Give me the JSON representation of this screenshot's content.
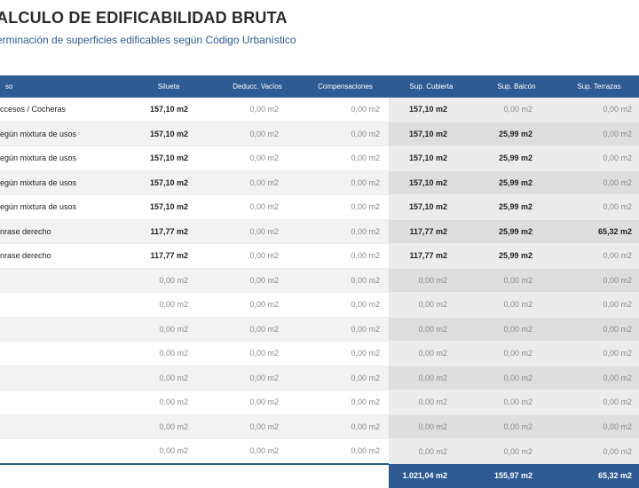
{
  "header": {
    "title": "ALCULO DE EDIFICABILIDAD BRUTA",
    "subtitle": "erminación de superficies edificables según Código Urbanístico"
  },
  "table": {
    "columns": [
      "so",
      "Silueta",
      "Deducc. Vacíos",
      "Compensaciones",
      "Sup. Cubierta",
      "Sup. Balcón",
      "Sup. Terrazas"
    ],
    "rows": [
      [
        "ccesos / Cocheras",
        "157,10 m2",
        "0,00 m2",
        "0,00 m2",
        "157,10 m2",
        "0,00 m2",
        "0,00 m2"
      ],
      [
        "egún mixtura de usos",
        "157,10 m2",
        "0,00 m2",
        "0,00 m2",
        "157,10 m2",
        "25,99 m2",
        "0,00 m2"
      ],
      [
        "egún mixtura de usos",
        "157,10 m2",
        "0,00 m2",
        "0,00 m2",
        "157,10 m2",
        "25,99 m2",
        "0,00 m2"
      ],
      [
        "egún mixtura de usos",
        "157,10 m2",
        "0,00 m2",
        "0,00 m2",
        "157,10 m2",
        "25,99 m2",
        "0,00 m2"
      ],
      [
        "egún mixtura de usos",
        "157,10 m2",
        "0,00 m2",
        "0,00 m2",
        "157,10 m2",
        "25,99 m2",
        "0,00 m2"
      ],
      [
        "nrase derecho",
        "117,77 m2",
        "0,00 m2",
        "0,00 m2",
        "117,77 m2",
        "25,99 m2",
        "65,32 m2"
      ],
      [
        "nrase derecho",
        "117,77 m2",
        "0,00 m2",
        "0,00 m2",
        "117,77 m2",
        "25,99 m2",
        "0,00 m2"
      ],
      [
        "",
        "0,00 m2",
        "0,00 m2",
        "0,00 m2",
        "0,00 m2",
        "0,00 m2",
        "0,00 m2"
      ],
      [
        "",
        "0,00 m2",
        "0,00 m2",
        "0,00 m2",
        "0,00 m2",
        "0,00 m2",
        "0,00 m2"
      ],
      [
        "",
        "0,00 m2",
        "0,00 m2",
        "0,00 m2",
        "0,00 m2",
        "0,00 m2",
        "0,00 m2"
      ],
      [
        "",
        "0,00 m2",
        "0,00 m2",
        "0,00 m2",
        "0,00 m2",
        "0,00 m2",
        "0,00 m2"
      ],
      [
        "",
        "0,00 m2",
        "0,00 m2",
        "0,00 m2",
        "0,00 m2",
        "0,00 m2",
        "0,00 m2"
      ],
      [
        "",
        "0,00 m2",
        "0,00 m2",
        "0,00 m2",
        "0,00 m2",
        "0,00 m2",
        "0,00 m2"
      ],
      [
        "",
        "0,00 m2",
        "0,00 m2",
        "0,00 m2",
        "0,00 m2",
        "0,00 m2",
        "0,00 m2"
      ],
      [
        "",
        "0,00 m2",
        "0,00 m2",
        "0,00 m2",
        "0,00 m2",
        "0,00 m2",
        "0,00 m2"
      ]
    ],
    "bold": [
      [
        false,
        true,
        false,
        false,
        true,
        false,
        false
      ],
      [
        false,
        true,
        false,
        false,
        true,
        true,
        false
      ],
      [
        false,
        true,
        false,
        false,
        true,
        true,
        false
      ],
      [
        false,
        true,
        false,
        false,
        true,
        true,
        false
      ],
      [
        false,
        true,
        false,
        false,
        true,
        true,
        false
      ],
      [
        false,
        true,
        false,
        false,
        true,
        true,
        true
      ],
      [
        false,
        true,
        false,
        false,
        true,
        true,
        false
      ],
      [
        false,
        false,
        false,
        false,
        false,
        false,
        false
      ],
      [
        false,
        false,
        false,
        false,
        false,
        false,
        false
      ],
      [
        false,
        false,
        false,
        false,
        false,
        false,
        false
      ],
      [
        false,
        false,
        false,
        false,
        false,
        false,
        false
      ],
      [
        false,
        false,
        false,
        false,
        false,
        false,
        false
      ],
      [
        false,
        false,
        false,
        false,
        false,
        false,
        false
      ],
      [
        false,
        false,
        false,
        false,
        false,
        false,
        false
      ],
      [
        false,
        false,
        false,
        false,
        false,
        false,
        false
      ]
    ],
    "totals": [
      "1.021,04 m2",
      "155,97 m2",
      "65,32 m2"
    ]
  }
}
